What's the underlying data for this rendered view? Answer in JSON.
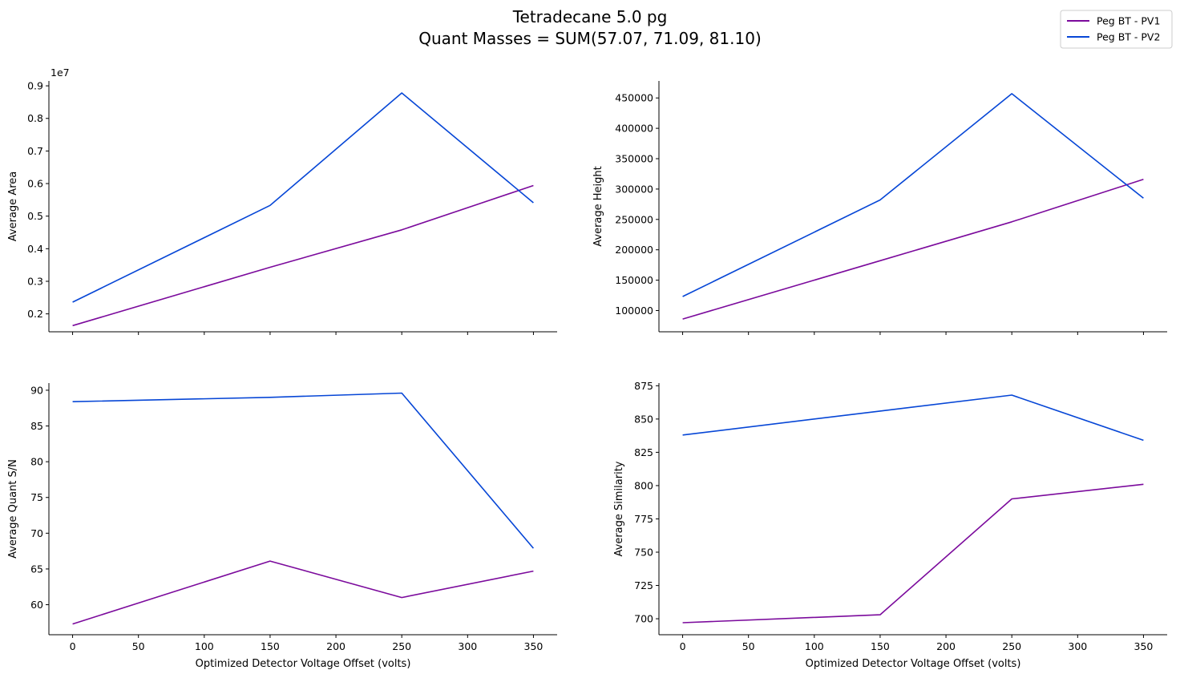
{
  "figure": {
    "title_line1": "Tetradecane 5.0 pg",
    "title_line2": "Quant Masses = SUM(57.07, 71.09, 81.10)"
  },
  "legend": {
    "placement": "top-right",
    "items": [
      {
        "label": "Peg BT - PV1",
        "color": "#7b0a9c"
      },
      {
        "label": "Peg BT - PV2",
        "color": "#0646d6"
      }
    ]
  },
  "chart_data": [
    {
      "type": "line",
      "ylabel": "Average Area",
      "xlabel": "",
      "y_offset_text": "1e7",
      "x": [
        0,
        150,
        250,
        350
      ],
      "xlim": [
        -18,
        368
      ],
      "ylim": [
        1450000,
        9150000
      ],
      "xticks": [
        0,
        50,
        100,
        150,
        200,
        250,
        300,
        350
      ],
      "yticks": [
        2000000,
        3000000,
        4000000,
        5000000,
        6000000,
        7000000,
        8000000,
        9000000
      ],
      "ytick_labels": [
        "0.2",
        "0.3",
        "0.4",
        "0.5",
        "0.6",
        "0.7",
        "0.8",
        "0.9"
      ],
      "xtick_labels_visible": false,
      "series": [
        {
          "name": "Peg BT - PV1",
          "color": "#7b0a9c",
          "values": [
            1640000,
            3430000,
            4580000,
            5940000
          ]
        },
        {
          "name": "Peg BT - PV2",
          "color": "#0646d6",
          "values": [
            2360000,
            5330000,
            8780000,
            5410000
          ]
        }
      ]
    },
    {
      "type": "line",
      "ylabel": "Average Height",
      "xlabel": "",
      "x": [
        0,
        150,
        250,
        350
      ],
      "xlim": [
        -18,
        368
      ],
      "ylim": [
        65000,
        478000
      ],
      "xticks": [
        0,
        50,
        100,
        150,
        200,
        250,
        300,
        350
      ],
      "yticks": [
        100000,
        150000,
        200000,
        250000,
        300000,
        350000,
        400000,
        450000
      ],
      "ytick_labels": [
        "100000",
        "150000",
        "200000",
        "250000",
        "300000",
        "350000",
        "400000",
        "450000"
      ],
      "xtick_labels_visible": false,
      "series": [
        {
          "name": "Peg BT - PV1",
          "color": "#7b0a9c",
          "values": [
            86000,
            182000,
            246000,
            316000
          ]
        },
        {
          "name": "Peg BT - PV2",
          "color": "#0646d6",
          "values": [
            123000,
            282000,
            457000,
            285000
          ]
        }
      ]
    },
    {
      "type": "line",
      "ylabel": "Average Quant S/N",
      "xlabel": "Optimized Detector Voltage Offset (volts)",
      "x": [
        0,
        150,
        250,
        350
      ],
      "xlim": [
        -18,
        368
      ],
      "ylim": [
        55.8,
        91.0
      ],
      "xticks": [
        0,
        50,
        100,
        150,
        200,
        250,
        300,
        350
      ],
      "yticks": [
        60,
        65,
        70,
        75,
        80,
        85,
        90
      ],
      "ytick_labels": [
        "60",
        "65",
        "70",
        "75",
        "80",
        "85",
        "90"
      ],
      "xtick_labels_visible": true,
      "series": [
        {
          "name": "Peg BT - PV1",
          "color": "#7b0a9c",
          "values": [
            57.3,
            66.1,
            61.0,
            64.7
          ]
        },
        {
          "name": "Peg BT - PV2",
          "color": "#0646d6",
          "values": [
            88.4,
            89.0,
            89.6,
            67.9
          ]
        }
      ]
    },
    {
      "type": "line",
      "ylabel": "Average Similarity",
      "xlabel": "Optimized Detector Voltage Offset (volts)",
      "x": [
        0,
        150,
        250,
        350
      ],
      "xlim": [
        -18,
        368
      ],
      "ylim": [
        688,
        877
      ],
      "xticks": [
        0,
        50,
        100,
        150,
        200,
        250,
        300,
        350
      ],
      "yticks": [
        700,
        725,
        750,
        775,
        800,
        825,
        850,
        875
      ],
      "ytick_labels": [
        "700",
        "725",
        "750",
        "775",
        "800",
        "825",
        "850",
        "875"
      ],
      "xtick_labels_visible": true,
      "series": [
        {
          "name": "Peg BT - PV1",
          "color": "#7b0a9c",
          "values": [
            697,
            703,
            790,
            801
          ]
        },
        {
          "name": "Peg BT - PV2",
          "color": "#0646d6",
          "values": [
            838,
            856,
            868,
            834
          ]
        }
      ]
    }
  ]
}
